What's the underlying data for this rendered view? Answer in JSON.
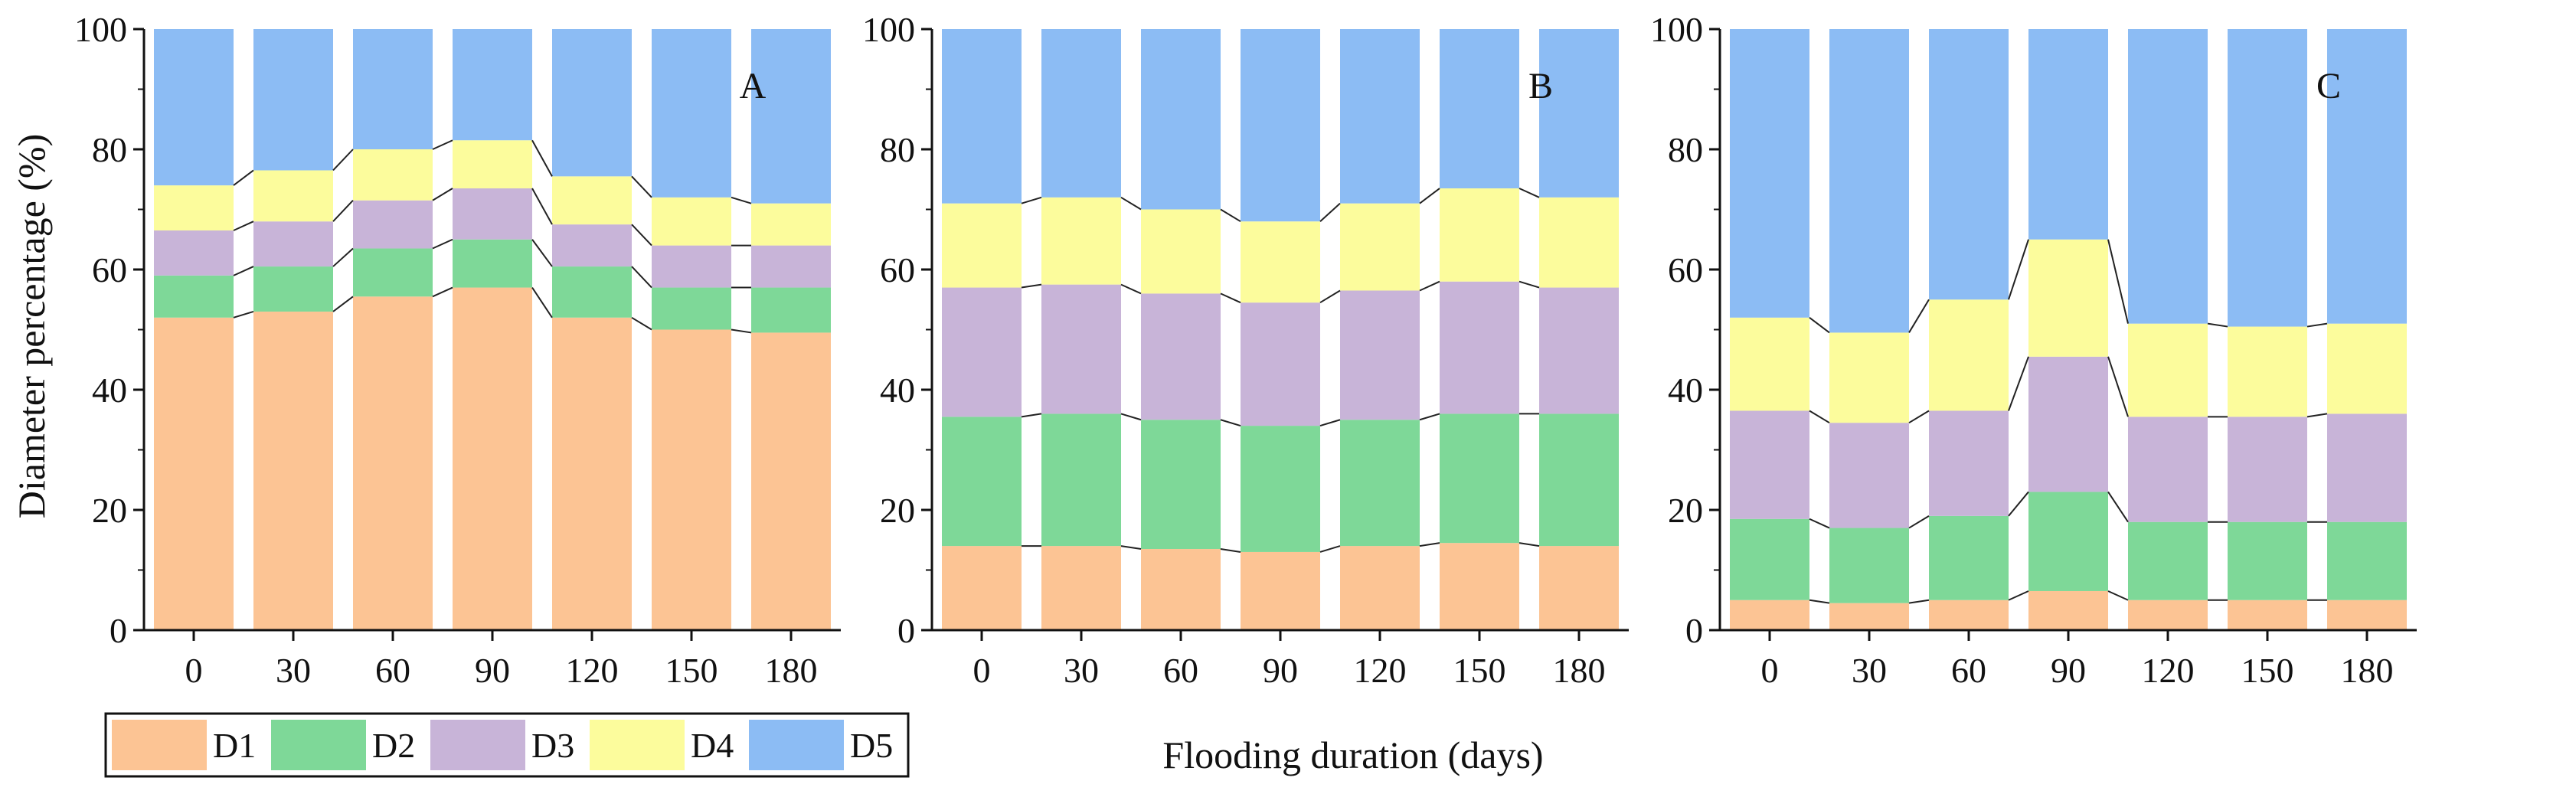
{
  "chart_data": {
    "type": "bar",
    "stacked": true,
    "ylabel": "Diameter percentage (%)",
    "xlabel": "Flooding duration (days)",
    "ylim": [
      0,
      100
    ],
    "yticks": [
      0,
      20,
      40,
      60,
      80,
      100
    ],
    "categories": [
      "0",
      "30",
      "60",
      "90",
      "120",
      "150",
      "180"
    ],
    "legend": {
      "placement": "bottom-left",
      "entries": [
        {
          "name": "D1",
          "color": "#fcc494"
        },
        {
          "name": "D2",
          "color": "#7ed898"
        },
        {
          "name": "D3",
          "color": "#c8b4d8"
        },
        {
          "name": "D4",
          "color": "#fcfc9c"
        },
        {
          "name": "D5",
          "color": "#8cbcf4"
        }
      ]
    },
    "panels": [
      {
        "label": "A",
        "series": [
          {
            "name": "D1",
            "values": [
              52,
              53,
              55.5,
              57,
              52,
              50,
              49.5
            ]
          },
          {
            "name": "D2",
            "values": [
              7,
              7.5,
              8,
              8,
              8.5,
              7,
              7.5
            ]
          },
          {
            "name": "D3",
            "values": [
              7.5,
              7.5,
              8,
              8.5,
              7,
              7,
              7
            ]
          },
          {
            "name": "D4",
            "values": [
              7.5,
              8.5,
              8.5,
              8,
              8,
              8,
              7
            ]
          },
          {
            "name": "D5",
            "values": [
              26,
              23.5,
              20,
              18.5,
              24.5,
              28,
              29
            ]
          }
        ]
      },
      {
        "label": "B",
        "series": [
          {
            "name": "D1",
            "values": [
              14,
              14,
              13.5,
              13,
              14,
              14.5,
              14
            ]
          },
          {
            "name": "D2",
            "values": [
              21.5,
              22,
              21.5,
              21,
              21,
              21.5,
              22
            ]
          },
          {
            "name": "D3",
            "values": [
              21.5,
              21.5,
              21,
              20.5,
              21.5,
              22,
              21
            ]
          },
          {
            "name": "D4",
            "values": [
              14,
              14.5,
              14,
              13.5,
              14.5,
              15.5,
              15
            ]
          },
          {
            "name": "D5",
            "values": [
              29,
              28,
              30,
              32,
              29,
              26.5,
              28
            ]
          }
        ]
      },
      {
        "label": "C",
        "series": [
          {
            "name": "D1",
            "values": [
              5,
              4.5,
              5,
              6.5,
              5,
              5,
              5
            ]
          },
          {
            "name": "D2",
            "values": [
              13.5,
              12.5,
              14,
              16.5,
              13,
              13,
              13
            ]
          },
          {
            "name": "D3",
            "values": [
              18,
              17.5,
              17.5,
              22.5,
              17.5,
              17.5,
              18
            ]
          },
          {
            "name": "D4",
            "values": [
              15.5,
              15,
              18.5,
              19.5,
              15.5,
              15,
              15
            ]
          },
          {
            "name": "D5",
            "values": [
              48,
              50.5,
              45,
              35,
              49,
              49.5,
              49
            ]
          }
        ]
      }
    ]
  }
}
